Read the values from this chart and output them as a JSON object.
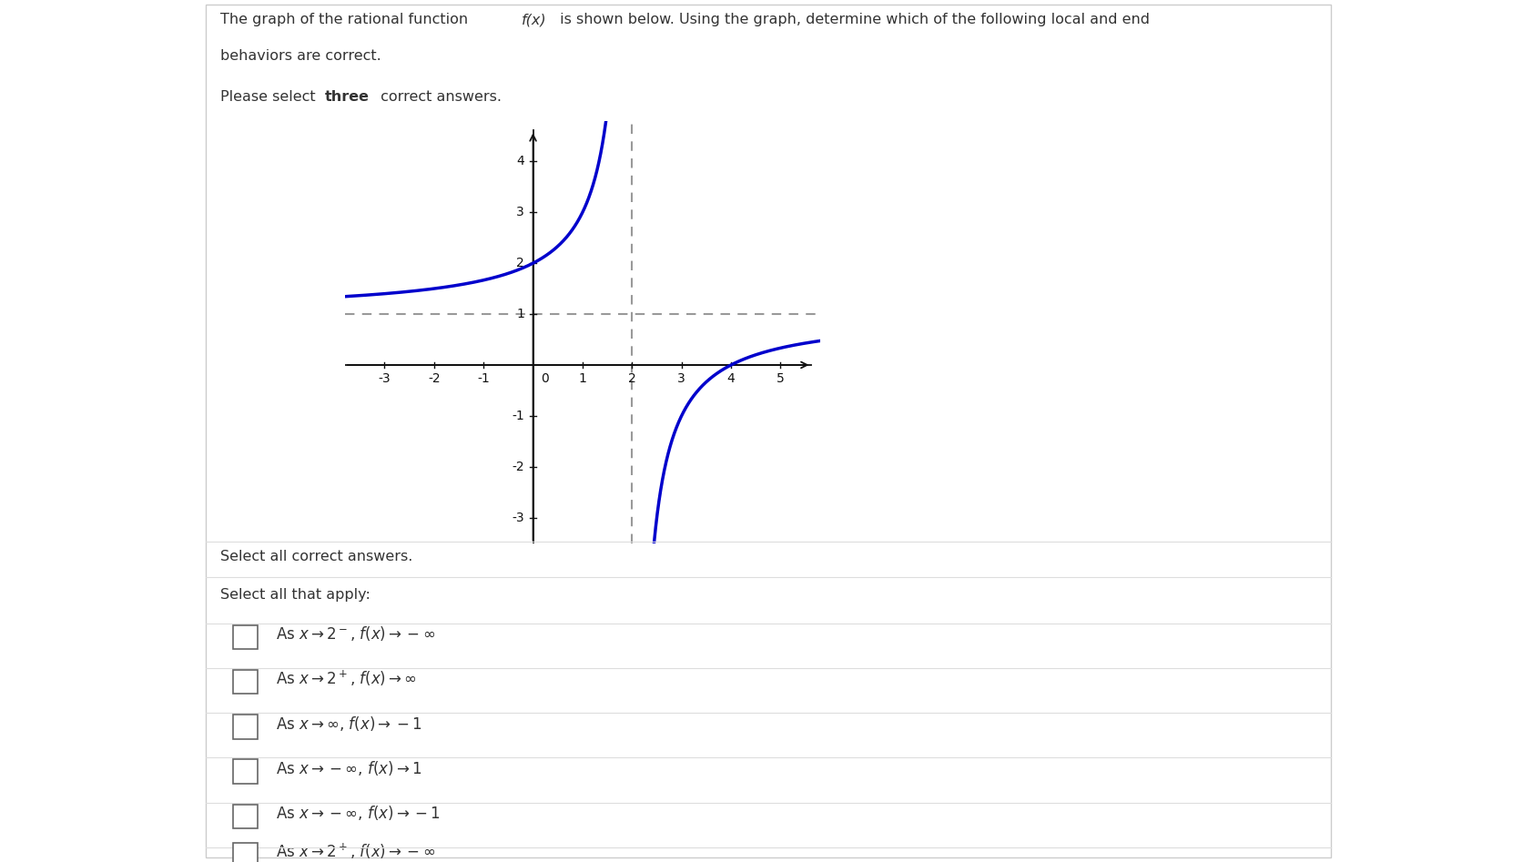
{
  "graph_xlim": [
    -3.8,
    5.8
  ],
  "graph_ylim": [
    -3.5,
    4.8
  ],
  "x_ticks": [
    -3,
    -2,
    -1,
    1,
    2,
    3,
    4,
    5
  ],
  "y_ticks": [
    -3,
    -2,
    -1,
    1,
    2,
    3,
    4
  ],
  "vertical_asymptote": 2,
  "horizontal_asymptote": 1,
  "curve_color": "#0000cc",
  "asymptote_color": "#999999",
  "asymptote_linewidth": 1.5,
  "curve_linewidth": 2.5,
  "axis_color": "#111111",
  "bg_color": "#ffffff",
  "options": [
    "As $x \\rightarrow 2^-$, $f(x) \\rightarrow -\\infty$",
    "As $x \\rightarrow 2^+$, $f(x) \\rightarrow \\infty$",
    "As $x \\rightarrow \\infty$, $f(x) \\rightarrow -1$",
    "As $x \\rightarrow -\\infty$, $f(x) \\rightarrow 1$",
    "As $x \\rightarrow -\\infty$, $f(x) \\rightarrow -1$",
    "As $x \\rightarrow 2^+$, $f(x) \\rightarrow -\\infty$"
  ],
  "select_all_text": "Select all correct answers.",
  "select_apply_text": "Select all that apply:",
  "border_color": "#cccccc",
  "separator_color": "#dddddd",
  "text_color": "#333333",
  "title_text": "The graph of the rational function ",
  "title_fx": "f(x)",
  "title_rest": " is shown below. Using the graph, determine which of the following local and end",
  "title_line2": "behaviors are correct.",
  "subtitle_pre": "Please select ",
  "subtitle_bold": "three",
  "subtitle_post": " correct answers."
}
